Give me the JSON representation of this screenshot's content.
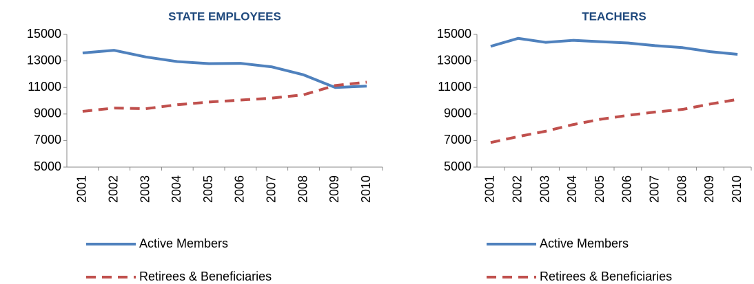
{
  "chart_data": [
    {
      "type": "line",
      "title": "STATE EMPLOYEES",
      "categories": [
        "2001",
        "2002",
        "2003",
        "2004",
        "2005",
        "2006",
        "2007",
        "2008",
        "2009",
        "2010"
      ],
      "series": [
        {
          "name": "Active Members",
          "color": "#4f81bd",
          "dash": false,
          "values": [
            13600,
            13800,
            13300,
            12950,
            12800,
            12820,
            12550,
            11950,
            11000,
            11100
          ]
        },
        {
          "name": "Retirees & Beneficiaries",
          "color": "#c0504d",
          "dash": true,
          "values": [
            9200,
            9450,
            9400,
            9700,
            9900,
            10050,
            10200,
            10450,
            11150,
            11400
          ]
        }
      ],
      "ylim": [
        5000,
        15000
      ],
      "yticks": [
        5000,
        7000,
        9000,
        11000,
        13000,
        15000
      ],
      "legend": "bottom"
    },
    {
      "type": "line",
      "title": "TEACHERS",
      "categories": [
        "2001",
        "2002",
        "2003",
        "2004",
        "2005",
        "2006",
        "2007",
        "2008",
        "2009",
        "2010"
      ],
      "series": [
        {
          "name": "Active Members",
          "color": "#4f81bd",
          "dash": false,
          "values": [
            14100,
            14700,
            14400,
            14550,
            14450,
            14350,
            14150,
            14000,
            13700,
            13500
          ]
        },
        {
          "name": "Retirees & Beneficiaries",
          "color": "#c0504d",
          "dash": true,
          "values": [
            6850,
            7300,
            7700,
            8200,
            8600,
            8900,
            9150,
            9350,
            9750,
            10100
          ]
        }
      ],
      "ylim": [
        5000,
        15000
      ],
      "yticks": [
        5000,
        7000,
        9000,
        11000,
        13000,
        15000
      ],
      "legend": "bottom"
    }
  ]
}
